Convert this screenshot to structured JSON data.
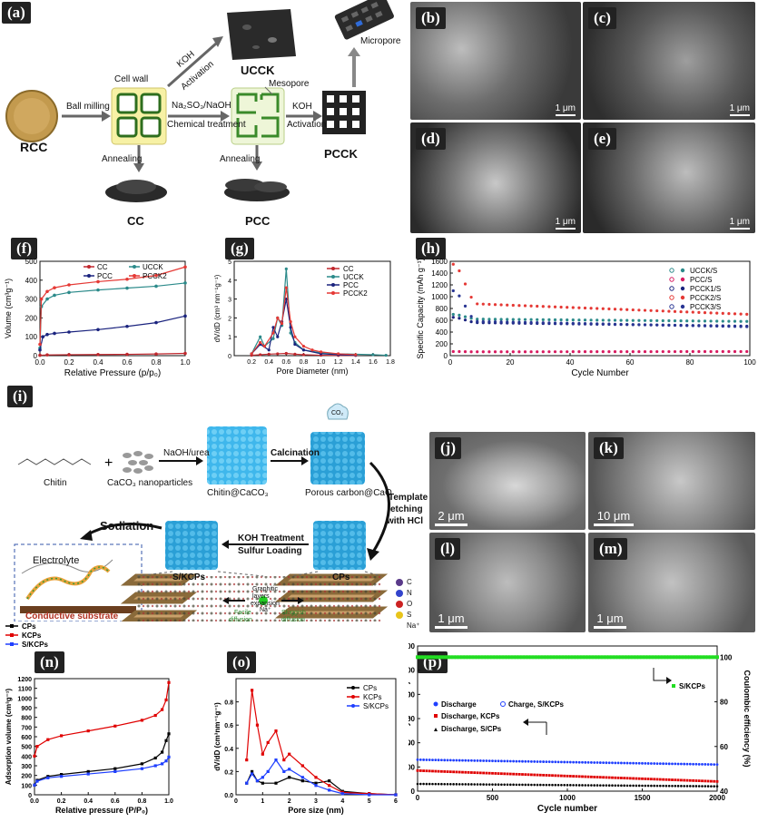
{
  "panels": {
    "a": "(a)",
    "b": "(b)",
    "c": "(c)",
    "d": "(d)",
    "e": "(e)",
    "f": "(f)",
    "g": "(g)",
    "h": "(h)",
    "i": "(i)",
    "j": "(j)",
    "k": "(k)",
    "l": "(l)",
    "m": "(m)",
    "n": "(n)",
    "o": "(o)",
    "p": "(p)"
  },
  "schematic_a": {
    "rcc": "RCC",
    "ball_milling": "Ball milling",
    "cell_wall": "Cell wall",
    "koh": "KOH",
    "activation": "Activation",
    "uccx": "UCCK",
    "na2so3": "Na₂SO₃/NaOH",
    "chem_treat": "Chemical treatment",
    "mesopore": "Mesopore",
    "micropore": "Micropore",
    "pccx": "PCCK",
    "annealing": "Annealing",
    "cc": "CC",
    "pcc": "PCC"
  },
  "sem_scale": {
    "b": "1 μm",
    "c": "1 μm",
    "d": "1 μm",
    "e": "1 μm",
    "j": "2 μm",
    "k": "10 μm",
    "l": "1 μm",
    "m": "1 μm"
  },
  "schematic_i": {
    "chitin": "Chitin",
    "caco3": "CaCO₃ nanoparticles",
    "naoh_urea": "NaOH/urea",
    "chitin_caco3": "Chitin@CaCO₃",
    "calcination": "Calcination",
    "co2": "CO₂",
    "porous": "Porous carbon@CaO",
    "template": "Template",
    "etching": "etching",
    "with_hcl": "with  HCl",
    "sodiation": "Sodiation",
    "koh_treat": "KOH Treatment",
    "sulfur": "Sulfur Loading",
    "skcps": "S/KCPs",
    "cps": "CPs",
    "electrolyte": "Electrolyte",
    "conductive": "Conductive substrate",
    "graphitic": "Graphitic",
    "layers": "layers",
    "expansion": "expansion",
    "facile": "Facile",
    "diffusion": "diffusion",
    "sluggish": "Sluggish",
    "na_plus": "Na⁺",
    "legend": [
      "C",
      "N",
      "O",
      "S",
      "Na⁺"
    ]
  },
  "chart_data": [
    {
      "id": "f",
      "type": "line",
      "xlabel": "Relative Pressure (p/p₀)",
      "ylabel": "Volume (cm³g⁻¹)",
      "xlim": [
        0,
        1
      ],
      "ylim": [
        0,
        500
      ],
      "xticks": [
        "0.0",
        "0.2",
        "0.4",
        "0.6",
        "0.8",
        "1.0"
      ],
      "yticks": [
        "0",
        "100",
        "200",
        "300",
        "400",
        "500"
      ],
      "series": [
        {
          "name": "CC",
          "color": "#c0272d",
          "x": [
            0,
            0.05,
            0.2,
            0.4,
            0.6,
            0.8,
            1.0
          ],
          "y": [
            2,
            4,
            5,
            6,
            7,
            9,
            12
          ]
        },
        {
          "name": "UCCK",
          "color": "#2b8a8a",
          "x": [
            0,
            0.01,
            0.05,
            0.1,
            0.2,
            0.4,
            0.6,
            0.8,
            1.0
          ],
          "y": [
            40,
            260,
            300,
            320,
            335,
            348,
            358,
            368,
            385
          ]
        },
        {
          "name": "PCC",
          "color": "#1a237e",
          "x": [
            0,
            0.02,
            0.05,
            0.1,
            0.2,
            0.4,
            0.6,
            0.8,
            1.0
          ],
          "y": [
            30,
            100,
            112,
            118,
            125,
            138,
            155,
            175,
            210
          ]
        },
        {
          "name": "PCCK2",
          "color": "#e53935",
          "x": [
            0,
            0.01,
            0.05,
            0.1,
            0.2,
            0.4,
            0.6,
            0.8,
            1.0
          ],
          "y": [
            60,
            300,
            340,
            360,
            375,
            392,
            405,
            425,
            470
          ]
        }
      ]
    },
    {
      "id": "g",
      "type": "line",
      "xlabel": "Pore Diameter (nm)",
      "ylabel": "dV/dD (cm³ nm⁻¹g⁻¹)",
      "xlim": [
        0,
        1.8
      ],
      "ylim": [
        0,
        5
      ],
      "xticks": [
        "0.2",
        "0.4",
        "0.6",
        "0.8",
        "1.0",
        "1.2",
        "1.4",
        "1.6",
        "1.8"
      ],
      "yticks": [
        "0",
        "1",
        "2",
        "3",
        "4",
        "5"
      ],
      "series": [
        {
          "name": "CC",
          "color": "#c0272d",
          "x": [
            0.2,
            0.3,
            0.4,
            0.5,
            0.6,
            0.7,
            0.8,
            1.0,
            1.2,
            1.4
          ],
          "y": [
            0.02,
            0.05,
            0.08,
            0.1,
            0.12,
            0.08,
            0.05,
            0.02,
            0.01,
            0.01
          ]
        },
        {
          "name": "UCCK",
          "color": "#2b8a8a",
          "x": [
            0.2,
            0.3,
            0.35,
            0.45,
            0.5,
            0.55,
            0.6,
            0.65,
            0.7,
            0.8,
            1.0,
            1.2,
            1.6,
            1.75
          ],
          "y": [
            0.1,
            1.0,
            0.5,
            0.9,
            2.0,
            1.6,
            4.6,
            1.2,
            0.7,
            0.3,
            0.15,
            0.1,
            0.05,
            0.02
          ]
        },
        {
          "name": "PCC",
          "color": "#1a237e",
          "x": [
            0.2,
            0.3,
            0.4,
            0.45,
            0.5,
            0.55,
            0.6,
            0.65,
            0.7,
            0.8,
            1.0,
            1.2,
            1.4
          ],
          "y": [
            0.1,
            0.6,
            0.3,
            1.5,
            1.0,
            1.8,
            3.0,
            1.5,
            0.6,
            0.3,
            0.1,
            0.05,
            0.02
          ]
        },
        {
          "name": "PCCK2",
          "color": "#e53935",
          "x": [
            0.2,
            0.3,
            0.35,
            0.45,
            0.5,
            0.55,
            0.6,
            0.65,
            0.7,
            0.8,
            0.9,
            1.0,
            1.2,
            1.4
          ],
          "y": [
            0.1,
            0.7,
            0.5,
            1.2,
            2.0,
            1.7,
            3.6,
            1.8,
            1.0,
            0.5,
            0.3,
            0.2,
            0.1,
            0.05
          ]
        }
      ]
    },
    {
      "id": "h",
      "type": "scatter",
      "xlabel": "Cycle Number",
      "ylabel": "Specific Capacity (mAh g⁻¹)",
      "xlim": [
        0,
        100
      ],
      "ylim": [
        0,
        1600
      ],
      "xticks": [
        "0",
        "20",
        "40",
        "60",
        "80",
        "100"
      ],
      "yticks": [
        "0",
        "200",
        "400",
        "600",
        "800",
        "1000",
        "1200",
        "1400",
        "1600"
      ],
      "series": [
        {
          "name": "UCCK/S",
          "color": "#2b8a8a",
          "start": 700,
          "plateau": 620,
          "end": 580
        },
        {
          "name": "PCC/S",
          "color": "#d81b60",
          "start": 70,
          "plateau": 65,
          "end": 70
        },
        {
          "name": "PCCK1/S",
          "color": "#1a237e",
          "start": 650,
          "plateau": 560,
          "end": 500
        },
        {
          "name": "PCCK2/S",
          "color": "#e53935",
          "start": 1550,
          "plateau": 880,
          "end": 700
        },
        {
          "name": "PCCK3/S",
          "color": "#283593",
          "start": 1100,
          "plateau": 580,
          "end": 490
        }
      ]
    },
    {
      "id": "n",
      "type": "line",
      "xlabel": "Relative pressure (P/P₀)",
      "ylabel": "Adsorption volume (cm³g⁻¹)",
      "xlim": [
        0,
        1
      ],
      "ylim": [
        0,
        1200
      ],
      "xticks": [
        "0.0",
        "0.2",
        "0.4",
        "0.6",
        "0.8",
        "1.0"
      ],
      "yticks": [
        "0",
        "100",
        "200",
        "300",
        "400",
        "500",
        "600",
        "700",
        "800",
        "900",
        "1000",
        "1100",
        "1200"
      ],
      "series": [
        {
          "name": "CPs",
          "color": "#000000",
          "x": [
            0,
            0.02,
            0.1,
            0.2,
            0.4,
            0.6,
            0.8,
            0.9,
            0.95,
            0.98,
            1.0
          ],
          "y": [
            100,
            150,
            190,
            210,
            240,
            270,
            320,
            380,
            440,
            560,
            630
          ]
        },
        {
          "name": "KCPs",
          "color": "#e00000",
          "x": [
            0,
            0.02,
            0.1,
            0.2,
            0.4,
            0.6,
            0.8,
            0.9,
            0.95,
            0.98,
            1.0
          ],
          "y": [
            400,
            500,
            570,
            610,
            660,
            710,
            770,
            820,
            880,
            980,
            1160
          ]
        },
        {
          "name": "S/KCPs",
          "color": "#1f3fff",
          "x": [
            0,
            0.02,
            0.1,
            0.2,
            0.4,
            0.6,
            0.8,
            0.9,
            0.95,
            0.98,
            1.0
          ],
          "y": [
            100,
            140,
            175,
            190,
            215,
            240,
            270,
            300,
            320,
            350,
            390
          ]
        }
      ]
    },
    {
      "id": "o",
      "type": "line",
      "xlabel": "Pore size (nm)",
      "ylabel": "dV/dD (cm³nm⁻¹g⁻¹)",
      "xlim": [
        0,
        6
      ],
      "ylim": [
        0,
        1.0
      ],
      "xticks": [
        "0",
        "1",
        "2",
        "3",
        "4",
        "5",
        "6"
      ],
      "yticks": [
        "0.0",
        "0.2",
        "0.4",
        "0.6",
        "0.8"
      ],
      "series": [
        {
          "name": "CPs",
          "color": "#000000",
          "x": [
            0.4,
            0.6,
            0.8,
            1.0,
            1.5,
            2.0,
            2.5,
            3.0,
            3.5,
            4.0,
            5.0,
            6.0
          ],
          "y": [
            0.1,
            0.2,
            0.12,
            0.1,
            0.1,
            0.15,
            0.12,
            0.1,
            0.12,
            0.03,
            0.01,
            0.0
          ]
        },
        {
          "name": "KCPs",
          "color": "#e00000",
          "x": [
            0.4,
            0.6,
            0.8,
            1.0,
            1.2,
            1.5,
            1.8,
            2.0,
            2.5,
            3.0,
            3.5,
            4.0,
            5.0,
            6.0
          ],
          "y": [
            0.3,
            0.9,
            0.6,
            0.35,
            0.45,
            0.55,
            0.3,
            0.35,
            0.25,
            0.15,
            0.08,
            0.02,
            0.01,
            0.0
          ]
        },
        {
          "name": "S/KCPs",
          "color": "#1f3fff",
          "x": [
            0.4,
            0.6,
            0.8,
            1.0,
            1.2,
            1.5,
            1.8,
            2.0,
            2.5,
            3.0,
            3.5,
            4.0,
            5.0,
            6.0
          ],
          "y": [
            0.1,
            0.18,
            0.12,
            0.15,
            0.2,
            0.3,
            0.2,
            0.22,
            0.15,
            0.08,
            0.04,
            0.01,
            0.0,
            0.0
          ]
        }
      ]
    },
    {
      "id": "p",
      "type": "scatter",
      "xlabel": "Cycle number",
      "ylabel": "Capacity (mAh g⁻¹)",
      "y2label": "Coulombic efficiency (%)",
      "xlim": [
        0,
        2000
      ],
      "ylim": [
        0,
        1200
      ],
      "y2lim": [
        40,
        105
      ],
      "xticks": [
        "0",
        "500",
        "1000",
        "1500",
        "2000"
      ],
      "yticks": [
        "0",
        "200",
        "400",
        "600",
        "800",
        "1000",
        "1200"
      ],
      "y2ticks": [
        "40",
        "60",
        "80",
        "100"
      ],
      "legend": [
        "Discharge",
        "Charge, S/KCPs",
        "Discharge, KCPs",
        "Discharge, S/CPs",
        "S/KCPs"
      ],
      "series": [
        {
          "name": "Discharge, S/KCPs",
          "color": "#1f3fff",
          "start": 260,
          "end": 220
        },
        {
          "name": "Discharge, KCPs",
          "color": "#e00000",
          "start": 170,
          "end": 80
        },
        {
          "name": "Discharge, S/CPs",
          "color": "#000000",
          "start": 60,
          "end": 40
        },
        {
          "name": "Coulombic efficiency, S/KCPs",
          "color": "#22dd22",
          "value": 100
        }
      ]
    }
  ]
}
